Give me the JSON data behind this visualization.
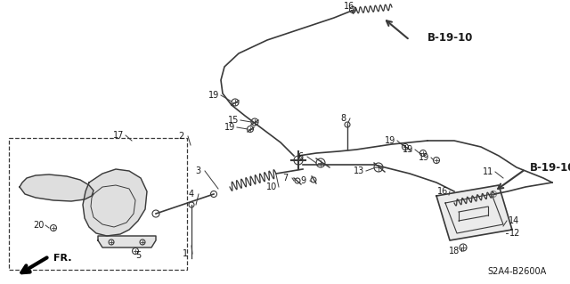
{
  "bg_color": "#ffffff",
  "fig_width": 6.4,
  "fig_height": 3.19,
  "dpi": 100,
  "part_code": "S2A4-B2600A",
  "ref_label": "B-19-10",
  "fr_label": "FR.",
  "line_color": "#3a3a3a",
  "label_color": "#1a1a1a",
  "label_fs": 7.0,
  "bold_fs": 8.5
}
